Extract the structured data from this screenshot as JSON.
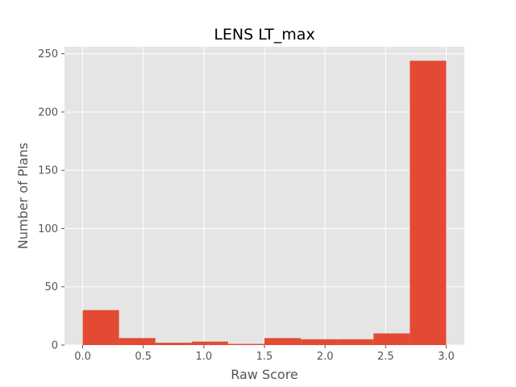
{
  "chart_data": {
    "type": "bar",
    "title": "LENS LT_max",
    "xlabel": "Raw Score",
    "ylabel": "Number of Plans",
    "bin_edges": [
      0.0,
      0.3,
      0.6,
      0.9,
      1.2,
      1.5,
      1.8,
      2.1,
      2.4,
      2.7,
      3.0
    ],
    "values": [
      30,
      6,
      2,
      3,
      1,
      6,
      5,
      5,
      10,
      244
    ],
    "xlim": [
      -0.15,
      3.15
    ],
    "ylim": [
      0,
      256
    ],
    "xticks": [
      0.0,
      0.5,
      1.0,
      1.5,
      2.0,
      2.5,
      3.0
    ],
    "xtick_labels": [
      "0.0",
      "0.5",
      "1.0",
      "1.5",
      "2.0",
      "2.5",
      "3.0"
    ],
    "yticks": [
      0,
      50,
      100,
      150,
      200,
      250
    ],
    "ytick_labels": [
      "0",
      "50",
      "100",
      "150",
      "200",
      "250"
    ],
    "grid": true,
    "colors": {
      "bar": "#E24A33",
      "background": "#E5E5E5",
      "grid": "#FFFFFF"
    }
  }
}
